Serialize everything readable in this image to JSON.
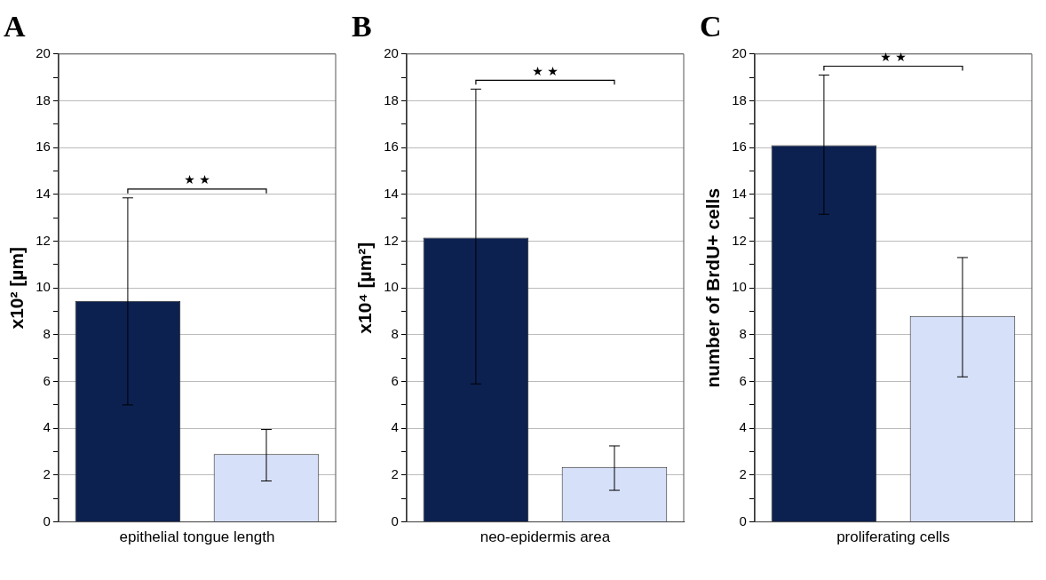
{
  "chart_data": [
    {
      "type": "bar",
      "title": "A",
      "ylabel": "x10² [µm]",
      "xlabel": "epithelial tongue length",
      "categories": [
        null,
        null
      ],
      "values": [
        9.45,
        2.9
      ],
      "colors": [
        "#0c2150",
        "#d6e0f8"
      ],
      "errors": [
        [
          5.0,
          13.85
        ],
        [
          1.75,
          3.95
        ]
      ],
      "ylim": [
        0,
        20
      ],
      "yticks": [
        0,
        {
          "value": 1,
          "label": null
        },
        2,
        {
          "value": 3,
          "label": null
        },
        4,
        {
          "value": 5,
          "label": null
        },
        6,
        {
          "value": 7,
          "label": null
        },
        8,
        {
          "value": 9,
          "label": null
        },
        10,
        {
          "value": 11,
          "label": null
        },
        12,
        {
          "value": 13,
          "label": null
        },
        14,
        {
          "value": 15,
          "label": null
        },
        16,
        {
          "value": 17,
          "label": null
        },
        18,
        {
          "value": 19,
          "label": null
        },
        20
      ],
      "grid": "y",
      "annotations": [
        "★ ★"
      ]
    },
    {
      "type": "bar",
      "title": "B",
      "ylabel": "x10⁴ [µm²]",
      "xlabel": "neo-epidermis area",
      "categories": [
        null,
        null
      ],
      "values": [
        12.15,
        2.35
      ],
      "colors": [
        "#0c2150",
        "#d6e0f8"
      ],
      "errors": [
        [
          5.9,
          18.5
        ],
        [
          1.35,
          3.25
        ]
      ],
      "ylim": [
        0,
        20
      ],
      "yticks": [
        0,
        {
          "value": 1,
          "label": null
        },
        2,
        {
          "value": 3,
          "label": null
        },
        4,
        {
          "value": 5,
          "label": null
        },
        6,
        {
          "value": 7,
          "label": null
        },
        8,
        {
          "value": 9,
          "label": null
        },
        10,
        {
          "value": 11,
          "label": null
        },
        12,
        {
          "value": 13,
          "label": null
        },
        14,
        {
          "value": 15,
          "label": null
        },
        16,
        {
          "value": 17,
          "label": null
        },
        18,
        {
          "value": 19,
          "label": null
        },
        20
      ],
      "grid": "y",
      "annotations": [
        "★ ★"
      ]
    },
    {
      "type": "bar",
      "title": "C",
      "ylabel": "number of BrdU+ cells",
      "xlabel": "proliferating cells",
      "categories": [
        null,
        null
      ],
      "values": [
        16.1,
        8.8
      ],
      "colors": [
        "#0c2150",
        "#d6e0f8"
      ],
      "errors": [
        [
          13.15,
          19.1
        ],
        [
          6.2,
          11.3
        ]
      ],
      "ylim": [
        0,
        20
      ],
      "yticks": [
        0,
        {
          "value": 1,
          "label": null
        },
        2,
        {
          "value": 3,
          "label": null
        },
        4,
        {
          "value": 5,
          "label": null
        },
        6,
        {
          "value": 7,
          "label": null
        },
        8,
        {
          "value": 9,
          "label": null
        },
        10,
        {
          "value": 11,
          "label": null
        },
        12,
        {
          "value": 13,
          "label": null
        },
        14,
        {
          "value": 15,
          "label": null
        },
        16,
        {
          "value": 17,
          "label": null
        },
        18,
        {
          "value": 19,
          "label": null
        },
        20
      ],
      "grid": "y",
      "annotations": [
        "★ ★"
      ]
    }
  ]
}
